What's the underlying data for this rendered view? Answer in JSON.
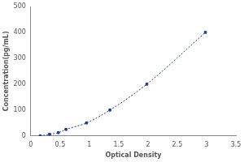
{
  "chart_data": {
    "type": "scatter",
    "x_label": "Optical Density",
    "y_label": "Concentration(pg/mL)",
    "x": [
      0.16,
      0.32,
      0.47,
      0.6,
      0.95,
      1.35,
      1.98,
      2.98
    ],
    "values": [
      0,
      6.25,
      12.5,
      25,
      50,
      100,
      200,
      400
    ],
    "color": "#1f3a93",
    "marker": "square",
    "line_style": "dotted",
    "xlim": [
      0,
      3.5
    ],
    "xticks": [
      0,
      0.5,
      1,
      1.5,
      2,
      2.5,
      3,
      3.5
    ],
    "ylim": [
      0,
      500
    ],
    "yticks": [
      0,
      100,
      200,
      300,
      400,
      500
    ],
    "grid": false
  }
}
